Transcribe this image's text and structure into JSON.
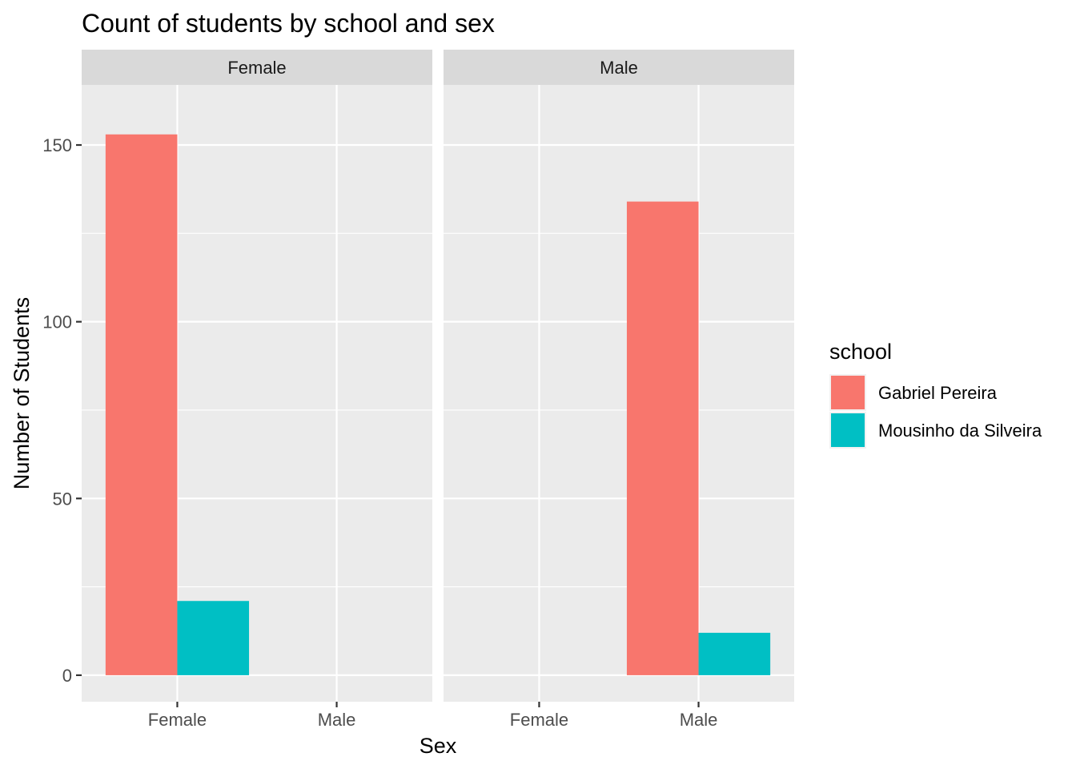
{
  "chart_data": {
    "type": "bar",
    "title": "Count of students by school and sex",
    "xlabel": "Sex",
    "ylabel": "Number of Students",
    "ylim": [
      -7.5,
      167
    ],
    "yticks": [
      0,
      50,
      100,
      150
    ],
    "grid": true,
    "legend_position": "right",
    "legend_title": "school",
    "facets": [
      "Female",
      "Male"
    ],
    "categories": [
      "Female",
      "Male"
    ],
    "series": [
      {
        "name": "Gabriel Pereira",
        "color": "#f8766d",
        "values": {
          "Female": {
            "Female": 153,
            "Male": 0
          },
          "Male": {
            "Female": 0,
            "Male": 134
          }
        }
      },
      {
        "name": "Mousinho da Silveira",
        "color": "#00bfc4",
        "values": {
          "Female": {
            "Female": 21,
            "Male": 0
          },
          "Male": {
            "Female": 0,
            "Male": 12
          }
        }
      }
    ]
  }
}
